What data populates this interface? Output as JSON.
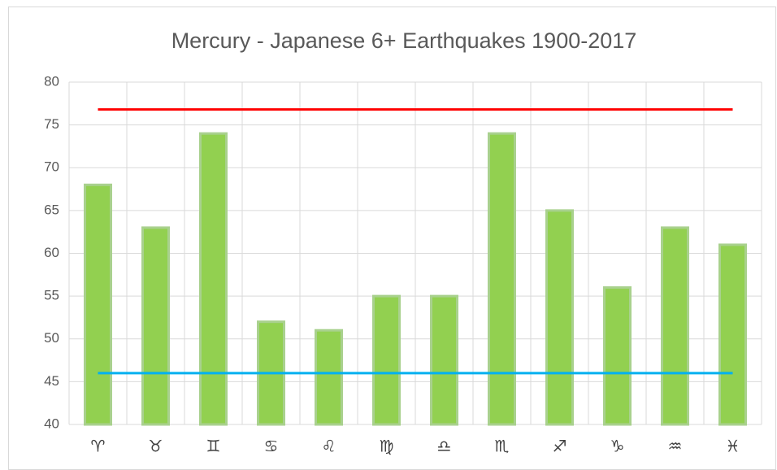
{
  "chart_data": {
    "type": "bar",
    "title": "Mercury - Japanese 6+ Earthquakes 1900-2017",
    "categories": [
      "♈",
      "♉",
      "♊",
      "♋",
      "♌",
      "♍",
      "♎",
      "♏",
      "♐",
      "♑",
      "♒",
      "♓"
    ],
    "series": [
      {
        "type": "bar",
        "color": "#92d050",
        "values": [
          68,
          63,
          74,
          52,
          51,
          55,
          55,
          74,
          65,
          56,
          63,
          61
        ]
      },
      {
        "type": "line",
        "color": "#ff0000",
        "values": [
          76.8,
          76.8,
          76.8,
          76.8,
          76.8,
          76.8,
          76.8,
          76.8,
          76.8,
          76.8,
          76.8,
          76.8
        ]
      },
      {
        "type": "line",
        "color": "#00b0f0",
        "values": [
          46,
          46,
          46,
          46,
          46,
          46,
          46,
          46,
          46,
          46,
          46,
          46
        ]
      }
    ],
    "ylim": [
      40,
      80
    ],
    "yticks": [
      40,
      45,
      50,
      55,
      60,
      65,
      70,
      75,
      80
    ],
    "grid": true
  }
}
